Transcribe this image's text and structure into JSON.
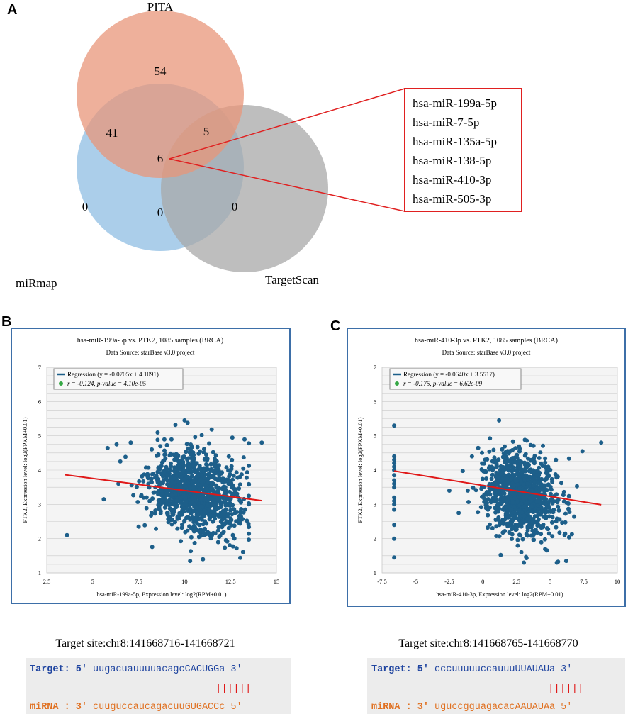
{
  "panels": {
    "a_label": "A",
    "b_label": "B",
    "c_label": "C"
  },
  "venn": {
    "sets": {
      "pita": "PITA",
      "mirmap": "miRmap",
      "targetscan": "TargetScan"
    },
    "counts": {
      "pita_only": "54",
      "pita_mirmap": "41",
      "pita_targetscan": "5",
      "all_three": "6",
      "mirmap_only": "0",
      "mirmap_targetscan": "0",
      "targetscan_only": "0"
    },
    "colors": {
      "pita": "#e8967a",
      "mirmap": "#8fbde3",
      "targetscan": "#a8a8a8",
      "callout": "#e02020"
    },
    "shared_mirnas": [
      "hsa-miR-199a-5p",
      "hsa-miR-7-5p",
      "hsa-miR-135a-5p",
      "hsa-miR-138-5p",
      "hsa-miR-410-3p",
      "hsa-miR-505-3p"
    ]
  },
  "chart_data": [
    {
      "type": "scatter",
      "title": "hsa-miR-199a-5p vs. PTK2, 1085 samples (BRCA)",
      "subtitle": "Data Source: starBase v3.0 project",
      "xlabel": "hsa-miR-199a-5p, Expression level: log2(RPM+0.01)",
      "ylabel": "PTK2, Expression level: log2(FPKM+0.01)",
      "xlim": [
        2.5,
        15
      ],
      "ylim": [
        1,
        7
      ],
      "xticks": [
        "2.5",
        "5",
        "7.5",
        "10",
        "12.5",
        "15"
      ],
      "yticks": [
        "1",
        "2",
        "3",
        "4",
        "5",
        "6",
        "7"
      ],
      "legend": {
        "regression": "Regression (y = -0.0705x + 4.1091)",
        "stats": "r = -0.124, p-value = 4.10e-05"
      },
      "regression": {
        "slope": -0.0705,
        "intercept": 4.1091,
        "x_range": [
          3.5,
          14.2
        ]
      },
      "cloud": {
        "n": 1085,
        "x_mean": 10.6,
        "x_sd": 1.2,
        "y_mean": 3.36,
        "y_sd": 0.6,
        "x_min": 5.5,
        "x_max": 13.5
      },
      "points": [
        {
          "x": 3.6,
          "y": 2.1
        },
        {
          "x": 14.2,
          "y": 4.8
        },
        {
          "x": 6.3,
          "y": 4.75
        },
        {
          "x": 6.5,
          "y": 4.25
        },
        {
          "x": 6.4,
          "y": 3.6
        },
        {
          "x": 12.6,
          "y": 4.95
        },
        {
          "x": 10.0,
          "y": 5.45
        },
        {
          "x": 11.0,
          "y": 1.4
        },
        {
          "x": 10.3,
          "y": 1.35
        },
        {
          "x": 5.6,
          "y": 3.15
        },
        {
          "x": 13.3,
          "y": 2.85
        },
        {
          "x": 7.5,
          "y": 2.35
        }
      ]
    },
    {
      "type": "scatter",
      "title": "hsa-miR-410-3p vs. PTK2, 1085 samples (BRCA)",
      "subtitle": "Data Source: starBase v3.0 project",
      "xlabel": "hsa-miR-410-3p, Expression level: log2(RPM+0.01)",
      "ylabel": "PTK2, Expression level: log2(FPKM+0.01)",
      "xlim": [
        -7.5,
        10
      ],
      "ylim": [
        1,
        7
      ],
      "xticks": [
        "-7.5",
        "-5",
        "-2.5",
        "0",
        "2.5",
        "5",
        "7.5",
        "10"
      ],
      "yticks": [
        "1",
        "2",
        "3",
        "4",
        "5",
        "6",
        "7"
      ],
      "legend": {
        "regression": "Regression (y = -0.0640x + 3.5517)",
        "stats": "r = -0.175, p-value = 6.62e-09"
      },
      "regression": {
        "slope": -0.064,
        "intercept": 3.5517,
        "x_range": [
          -6.6,
          8.8
        ]
      },
      "cloud": {
        "n": 1060,
        "x_mean": 2.8,
        "x_sd": 1.35,
        "y_mean": 3.3,
        "y_sd": 0.6,
        "x_min": -1.5,
        "x_max": 7.5
      },
      "points": [
        {
          "x": -6.6,
          "y": 5.3
        },
        {
          "x": -6.6,
          "y": 4.4
        },
        {
          "x": -6.6,
          "y": 4.3
        },
        {
          "x": -6.6,
          "y": 4.2
        },
        {
          "x": -6.6,
          "y": 4.1
        },
        {
          "x": -6.6,
          "y": 4.0
        },
        {
          "x": -6.6,
          "y": 3.85
        },
        {
          "x": -6.6,
          "y": 3.7
        },
        {
          "x": -6.6,
          "y": 3.6
        },
        {
          "x": -6.6,
          "y": 3.5
        },
        {
          "x": -6.6,
          "y": 3.2
        },
        {
          "x": -6.6,
          "y": 3.1
        },
        {
          "x": -6.6,
          "y": 3.0
        },
        {
          "x": -6.6,
          "y": 2.85
        },
        {
          "x": -6.6,
          "y": 2.4
        },
        {
          "x": -6.6,
          "y": 2.0
        },
        {
          "x": -6.6,
          "y": 1.45
        },
        {
          "x": 8.8,
          "y": 4.8
        },
        {
          "x": 7.4,
          "y": 4.55
        },
        {
          "x": 1.2,
          "y": 5.45
        },
        {
          "x": 6.2,
          "y": 1.35
        },
        {
          "x": -2.5,
          "y": 3.4
        },
        {
          "x": -1.8,
          "y": 2.75
        }
      ]
    }
  ],
  "target_sites": [
    {
      "title": "Target site:chr8:141668716-141668721",
      "target_prefix": "Target: 5'",
      "target_seq_lower": "uugacuauuuuacagc",
      "target_seq_upper": "CACUGG",
      "target_seq_tail": "a",
      "target_suffix": "3'",
      "pairs": "||||||",
      "mirna_prefix": "miRNA : 3'",
      "mirna_seq_lower": "cuuguccaucagacuu",
      "mirna_seq_upper": "GUGACC",
      "mirna_seq_tail": "c",
      "mirna_suffix": "5'"
    },
    {
      "title": "Target site:chr8:141668765-141668770",
      "target_prefix": "Target: 5'",
      "target_seq_lower": "cccuuuuuccauuu",
      "target_seq_upper": "UUAUAU",
      "target_seq_tail": "a",
      "target_suffix": "3'",
      "pairs": "||||||",
      "mirna_prefix": "miRNA : 3'",
      "mirna_seq_lower": "uguccgguagacac",
      "mirna_seq_upper": "AAUAUA",
      "mirna_seq_tail": "a",
      "mirna_suffix": "5'"
    }
  ],
  "style_colors": {
    "frame": "#3d6fa8",
    "point": "#1d5f8a",
    "regression_line": "#e01818",
    "target_text": "#2045a0",
    "mirna_text": "#e07020",
    "seq_bg": "#ececec"
  }
}
